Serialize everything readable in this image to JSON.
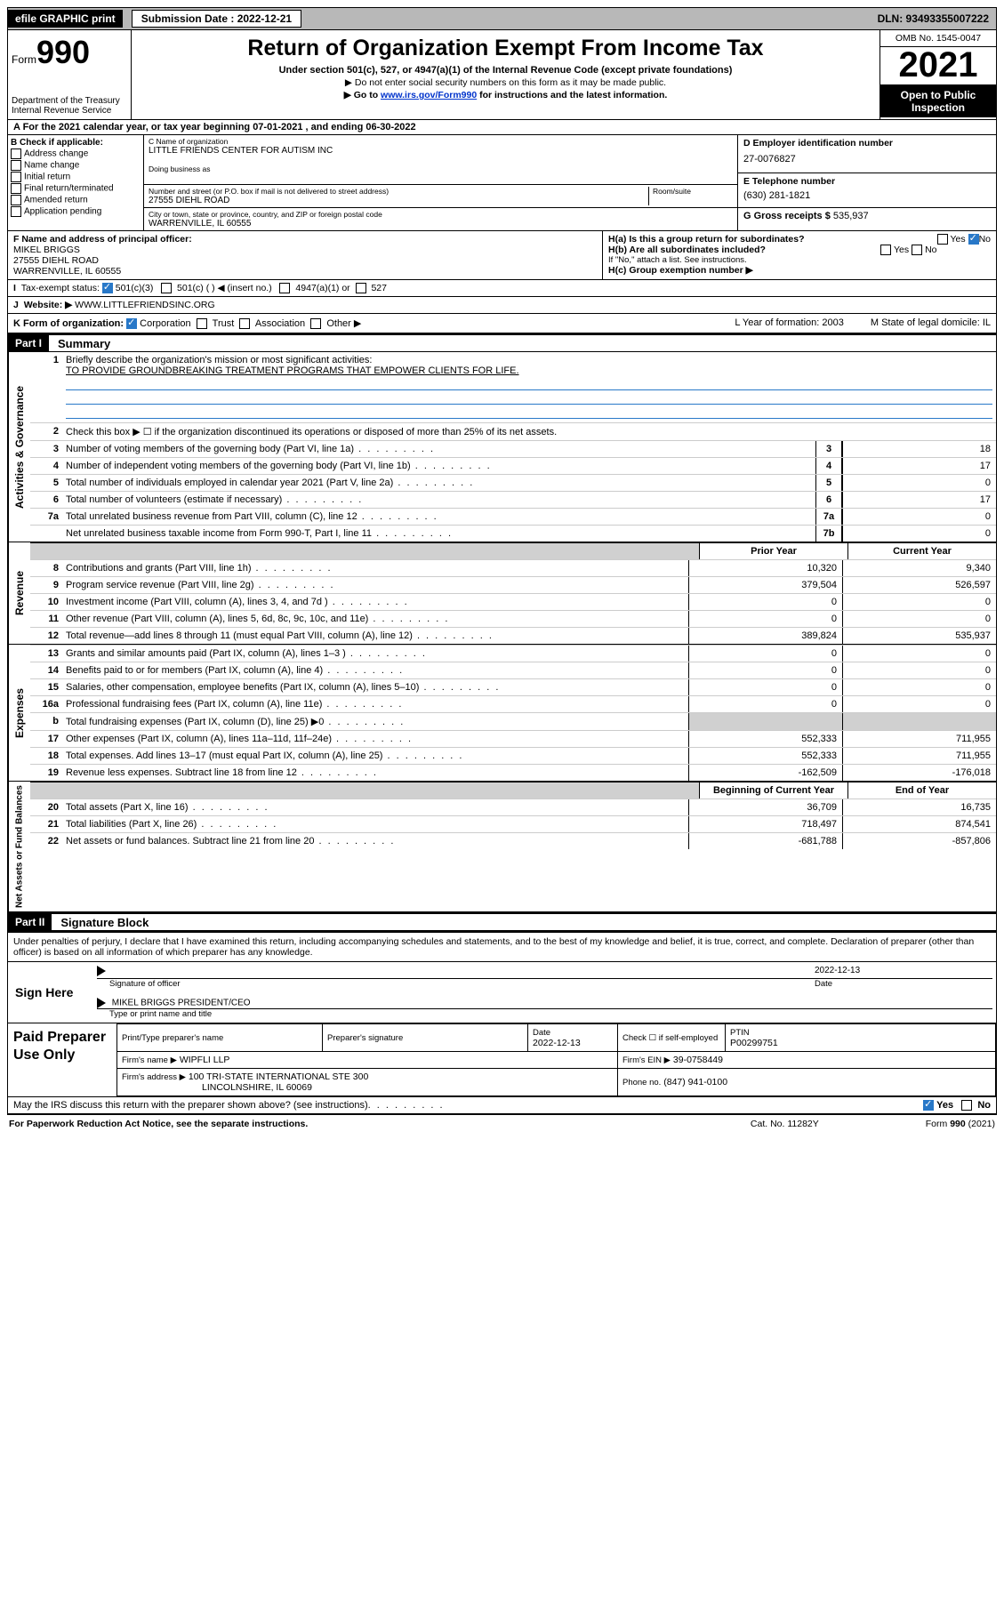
{
  "topbar": {
    "efile": "efile GRAPHIC print",
    "submission": "Submission Date : 2022-12-21",
    "dln": "DLN: 93493355007222"
  },
  "header": {
    "form_prefix": "Form",
    "form_num": "990",
    "dept": "Department of the Treasury",
    "irs": "Internal Revenue Service",
    "title": "Return of Organization Exempt From Income Tax",
    "sub": "Under section 501(c), 527, or 4947(a)(1) of the Internal Revenue Code (except private foundations)",
    "sub2": "▶ Do not enter social security numbers on this form as it may be made public.",
    "sub3_pre": "▶ Go to ",
    "sub3_link": "www.irs.gov/Form990",
    "sub3_post": " for instructions and the latest information.",
    "omb": "OMB No. 1545-0047",
    "year": "2021",
    "open": "Open to Public Inspection"
  },
  "bandA": "A For the 2021 calendar year, or tax year beginning 07-01-2021   , and ending 06-30-2022",
  "B": {
    "hdr": "B Check if applicable:",
    "items": [
      "Address change",
      "Name change",
      "Initial return",
      "Final return/terminated",
      "Amended return",
      "Application pending"
    ]
  },
  "C": {
    "name_lbl": "C Name of organization",
    "name": "LITTLE FRIENDS CENTER FOR AUTISM INC",
    "dba_lbl": "Doing business as",
    "addr_lbl": "Number and street (or P.O. box if mail is not delivered to street address)",
    "room_lbl": "Room/suite",
    "addr": "27555 DIEHL ROAD",
    "city_lbl": "City or town, state or province, country, and ZIP or foreign postal code",
    "city": "WARRENVILLE, IL  60555"
  },
  "D": {
    "ein_lbl": "D Employer identification number",
    "ein": "27-0076827",
    "tel_lbl": "E Telephone number",
    "tel": "(630) 281-1821",
    "gross_lbl": "G Gross receipts $",
    "gross": "535,937"
  },
  "F": {
    "lbl": "F  Name and address of principal officer:",
    "name": "MIKEL BRIGGS",
    "addr1": "27555 DIEHL ROAD",
    "addr2": "WARRENVILLE, IL  60555"
  },
  "H": {
    "ha": "H(a)  Is this a group return for subordinates?",
    "hb": "H(b)  Are all subordinates included?",
    "hb_note": "If \"No,\" attach a list. See instructions.",
    "hc": "H(c)  Group exemption number ▶",
    "yes": "Yes",
    "no": "No"
  },
  "I": {
    "lbl": "Tax-exempt status:",
    "opt501c3": "501(c)(3)",
    "opt501c": "501(c) (  ) ◀ (insert no.)",
    "opt4947": "4947(a)(1) or",
    "opt527": "527"
  },
  "J": {
    "lbl": "Website: ▶",
    "val": "WWW.LITTLEFRIENDSINC.ORG"
  },
  "K": {
    "lbl": "K Form of organization:",
    "corp": "Corporation",
    "trust": "Trust",
    "assoc": "Association",
    "other": "Other ▶",
    "L": "L Year of formation: 2003",
    "M": "M State of legal domicile: IL"
  },
  "part1": {
    "hdr": "Part I",
    "title": "Summary",
    "l1": "Briefly describe the organization's mission or most significant activities:",
    "l1v": "TO PROVIDE GROUNDBREAKING TREATMENT PROGRAMS THAT EMPOWER CLIENTS FOR LIFE.",
    "l2": "Check this box ▶ ☐  if the organization discontinued its operations or disposed of more than 25% of its net assets.",
    "rows_gov": [
      {
        "n": "3",
        "d": "Number of voting members of the governing body (Part VI, line 1a)",
        "b": "3",
        "v": "18"
      },
      {
        "n": "4",
        "d": "Number of independent voting members of the governing body (Part VI, line 1b)",
        "b": "4",
        "v": "17"
      },
      {
        "n": "5",
        "d": "Total number of individuals employed in calendar year 2021 (Part V, line 2a)",
        "b": "5",
        "v": "0"
      },
      {
        "n": "6",
        "d": "Total number of volunteers (estimate if necessary)",
        "b": "6",
        "v": "17"
      },
      {
        "n": "7a",
        "d": "Total unrelated business revenue from Part VIII, column (C), line 12",
        "b": "7a",
        "v": "0"
      },
      {
        "n": "",
        "d": "Net unrelated business taxable income from Form 990-T, Part I, line 11",
        "b": "7b",
        "v": "0"
      }
    ],
    "hdr_prior": "Prior Year",
    "hdr_curr": "Current Year",
    "rows_rev": [
      {
        "n": "8",
        "d": "Contributions and grants (Part VIII, line 1h)",
        "p": "10,320",
        "c": "9,340"
      },
      {
        "n": "9",
        "d": "Program service revenue (Part VIII, line 2g)",
        "p": "379,504",
        "c": "526,597"
      },
      {
        "n": "10",
        "d": "Investment income (Part VIII, column (A), lines 3, 4, and 7d )",
        "p": "0",
        "c": "0"
      },
      {
        "n": "11",
        "d": "Other revenue (Part VIII, column (A), lines 5, 6d, 8c, 9c, 10c, and 11e)",
        "p": "0",
        "c": "0"
      },
      {
        "n": "12",
        "d": "Total revenue—add lines 8 through 11 (must equal Part VIII, column (A), line 12)",
        "p": "389,824",
        "c": "535,937"
      }
    ],
    "rows_exp": [
      {
        "n": "13",
        "d": "Grants and similar amounts paid (Part IX, column (A), lines 1–3 )",
        "p": "0",
        "c": "0"
      },
      {
        "n": "14",
        "d": "Benefits paid to or for members (Part IX, column (A), line 4)",
        "p": "0",
        "c": "0"
      },
      {
        "n": "15",
        "d": "Salaries, other compensation, employee benefits (Part IX, column (A), lines 5–10)",
        "p": "0",
        "c": "0"
      },
      {
        "n": "16a",
        "d": "Professional fundraising fees (Part IX, column (A), line 11e)",
        "p": "0",
        "c": "0"
      },
      {
        "n": "b",
        "d": "Total fundraising expenses (Part IX, column (D), line 25) ▶0",
        "p": "",
        "c": "",
        "shade": true
      },
      {
        "n": "17",
        "d": "Other expenses (Part IX, column (A), lines 11a–11d, 11f–24e)",
        "p": "552,333",
        "c": "711,955"
      },
      {
        "n": "18",
        "d": "Total expenses. Add lines 13–17 (must equal Part IX, column (A), line 25)",
        "p": "552,333",
        "c": "711,955"
      },
      {
        "n": "19",
        "d": "Revenue less expenses. Subtract line 18 from line 12",
        "p": "-162,509",
        "c": "-176,018"
      }
    ],
    "hdr_begin": "Beginning of Current Year",
    "hdr_end": "End of Year",
    "rows_net": [
      {
        "n": "20",
        "d": "Total assets (Part X, line 16)",
        "p": "36,709",
        "c": "16,735"
      },
      {
        "n": "21",
        "d": "Total liabilities (Part X, line 26)",
        "p": "718,497",
        "c": "874,541"
      },
      {
        "n": "22",
        "d": "Net assets or fund balances. Subtract line 21 from line 20",
        "p": "-681,788",
        "c": "-857,806"
      }
    ],
    "side_gov": "Activities & Governance",
    "side_rev": "Revenue",
    "side_exp": "Expenses",
    "side_net": "Net Assets or Fund Balances"
  },
  "part2": {
    "hdr": "Part II",
    "title": "Signature Block",
    "decl": "Under penalties of perjury, I declare that I have examined this return, including accompanying schedules and statements, and to the best of my knowledge and belief, it is true, correct, and complete. Declaration of preparer (other than officer) is based on all information of which preparer has any knowledge.",
    "sign_here": "Sign Here",
    "sig_officer": "Signature of officer",
    "sig_date": "2022-12-13",
    "date_lbl": "Date",
    "printed": "MIKEL BRIGGS PRESIDENT/CEO",
    "printed_lbl": "Type or print name and title",
    "paid": "Paid Preparer Use Only",
    "prep_name_lbl": "Print/Type preparer's name",
    "prep_sig_lbl": "Preparer's signature",
    "prep_date_lbl": "Date",
    "prep_date": "2022-12-13",
    "check_lbl": "Check ☐ if self-employed",
    "ptin_lbl": "PTIN",
    "ptin": "P00299751",
    "firm_name_lbl": "Firm's name    ▶",
    "firm_name": "WIPFLI LLP",
    "firm_ein_lbl": "Firm's EIN ▶",
    "firm_ein": "39-0758449",
    "firm_addr_lbl": "Firm's address ▶",
    "firm_addr": "100 TRI-STATE INTERNATIONAL STE 300",
    "firm_addr2": "LINCOLNSHIRE, IL  60069",
    "phone_lbl": "Phone no.",
    "phone": "(847) 941-0100",
    "may_irs": "May the IRS discuss this return with the preparer shown above? (see instructions)",
    "yes": "Yes",
    "no": "No"
  },
  "footer": {
    "left": "For Paperwork Reduction Act Notice, see the separate instructions.",
    "mid": "Cat. No. 11282Y",
    "right": "Form 990 (2021)"
  }
}
